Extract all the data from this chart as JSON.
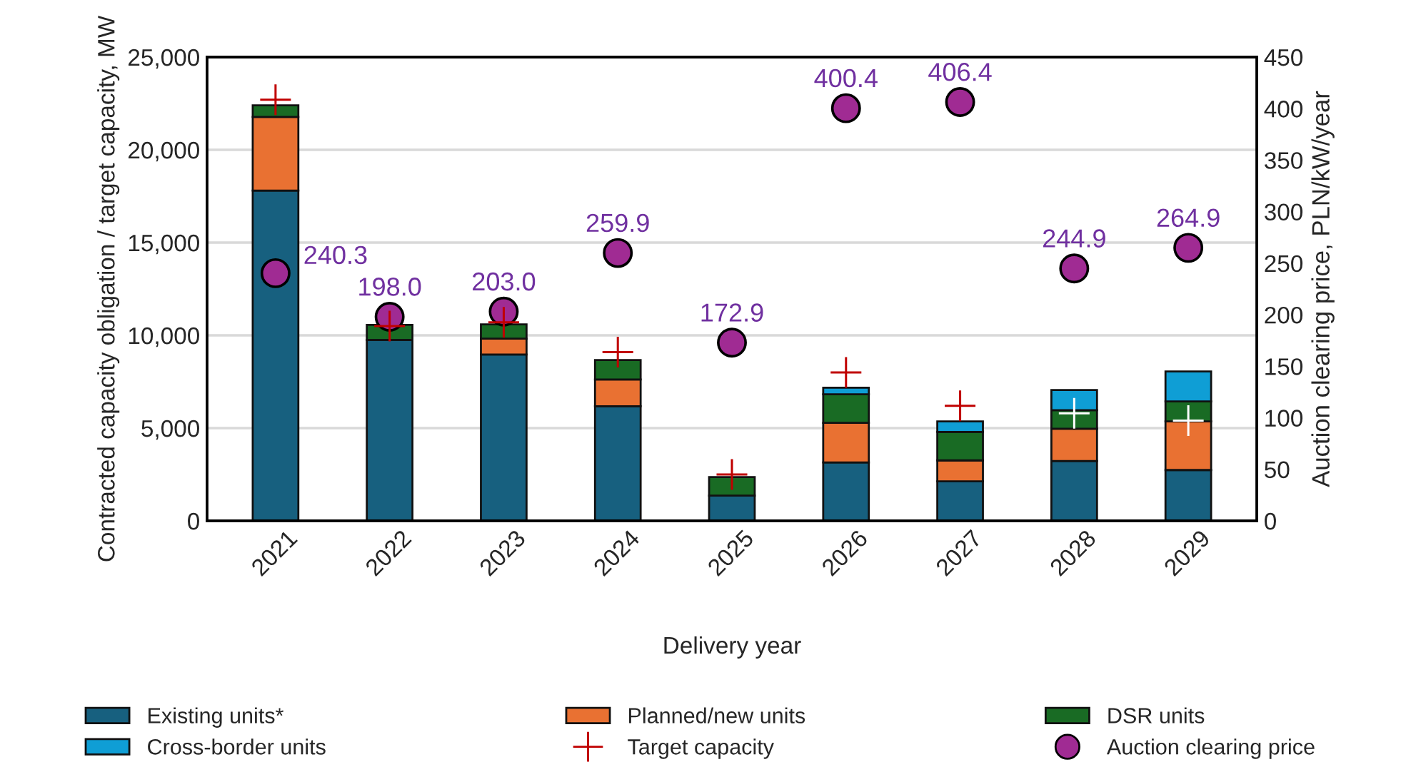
{
  "chart_data": {
    "type": "bar",
    "stacked": true,
    "categories": [
      "2021",
      "2022",
      "2023",
      "2024",
      "2025",
      "2026",
      "2027",
      "2028",
      "2029"
    ],
    "xlabel": "Delivery year",
    "ylabel": "Contracted capacity obligation / target capacity, MW",
    "y2label": "Auction clearing price, PLN/kW/year",
    "ylim": [
      0,
      25000
    ],
    "yticks": [
      0,
      {
        "value": 5000,
        "label": "5,000"
      },
      {
        "value": 10000,
        "label": "10,000"
      },
      {
        "value": 15000,
        "label": "15,000"
      },
      {
        "value": 20000,
        "label": "20,000"
      },
      {
        "value": 25000,
        "label": "25,000"
      }
    ],
    "y2lim": [
      0,
      450
    ],
    "y2ticks": [
      0,
      50,
      100,
      150,
      200,
      250,
      300,
      350,
      400,
      450
    ],
    "grid": "y",
    "legend": "bottom",
    "series": [
      {
        "name": "Existing units*",
        "color": "#17607f",
        "values": [
          17800,
          9750,
          8970,
          6180,
          1360,
          3150,
          2130,
          3230,
          2740
        ]
      },
      {
        "name": "Planned/new units",
        "color": "#e97132",
        "values": [
          3970,
          null,
          850,
          1440,
          null,
          2130,
          1130,
          1740,
          2620
        ]
      },
      {
        "name": "DSR units",
        "color": "#196b24",
        "values": [
          630,
          810,
          770,
          1050,
          1000,
          1540,
          1530,
          1000,
          1080
        ]
      },
      {
        "name": "Cross-border units",
        "color": "#0f9ed5",
        "values": [
          null,
          null,
          null,
          null,
          null,
          360,
          570,
          1080,
          1610
        ]
      },
      {
        "name": "Target capacity",
        "type": "scatter",
        "marker": "cross",
        "color": "#c00000",
        "colors": [
          "#c00000",
          "#c00000",
          "#c00000",
          "#c00000",
          "#c00000",
          "#c00000",
          "#c00000",
          "#ffffff",
          "#ffffff"
        ],
        "values": [
          22700,
          10500,
          10700,
          9100,
          2500,
          8000,
          6200,
          5800,
          5400
        ]
      },
      {
        "name": "Auction clearing price",
        "type": "scatter",
        "marker": "circle",
        "axis": "y2",
        "color": "#a02b93",
        "data_labels": true,
        "value_labels": [
          "240.3",
          "198.0",
          "203.0",
          "259.9",
          "172.9",
          "400.4",
          "406.4",
          "244.9",
          "264.9"
        ],
        "values": [
          240.3,
          198.0,
          203.0,
          259.9,
          172.9,
          400.4,
          406.4,
          244.9,
          264.9
        ]
      }
    ]
  }
}
